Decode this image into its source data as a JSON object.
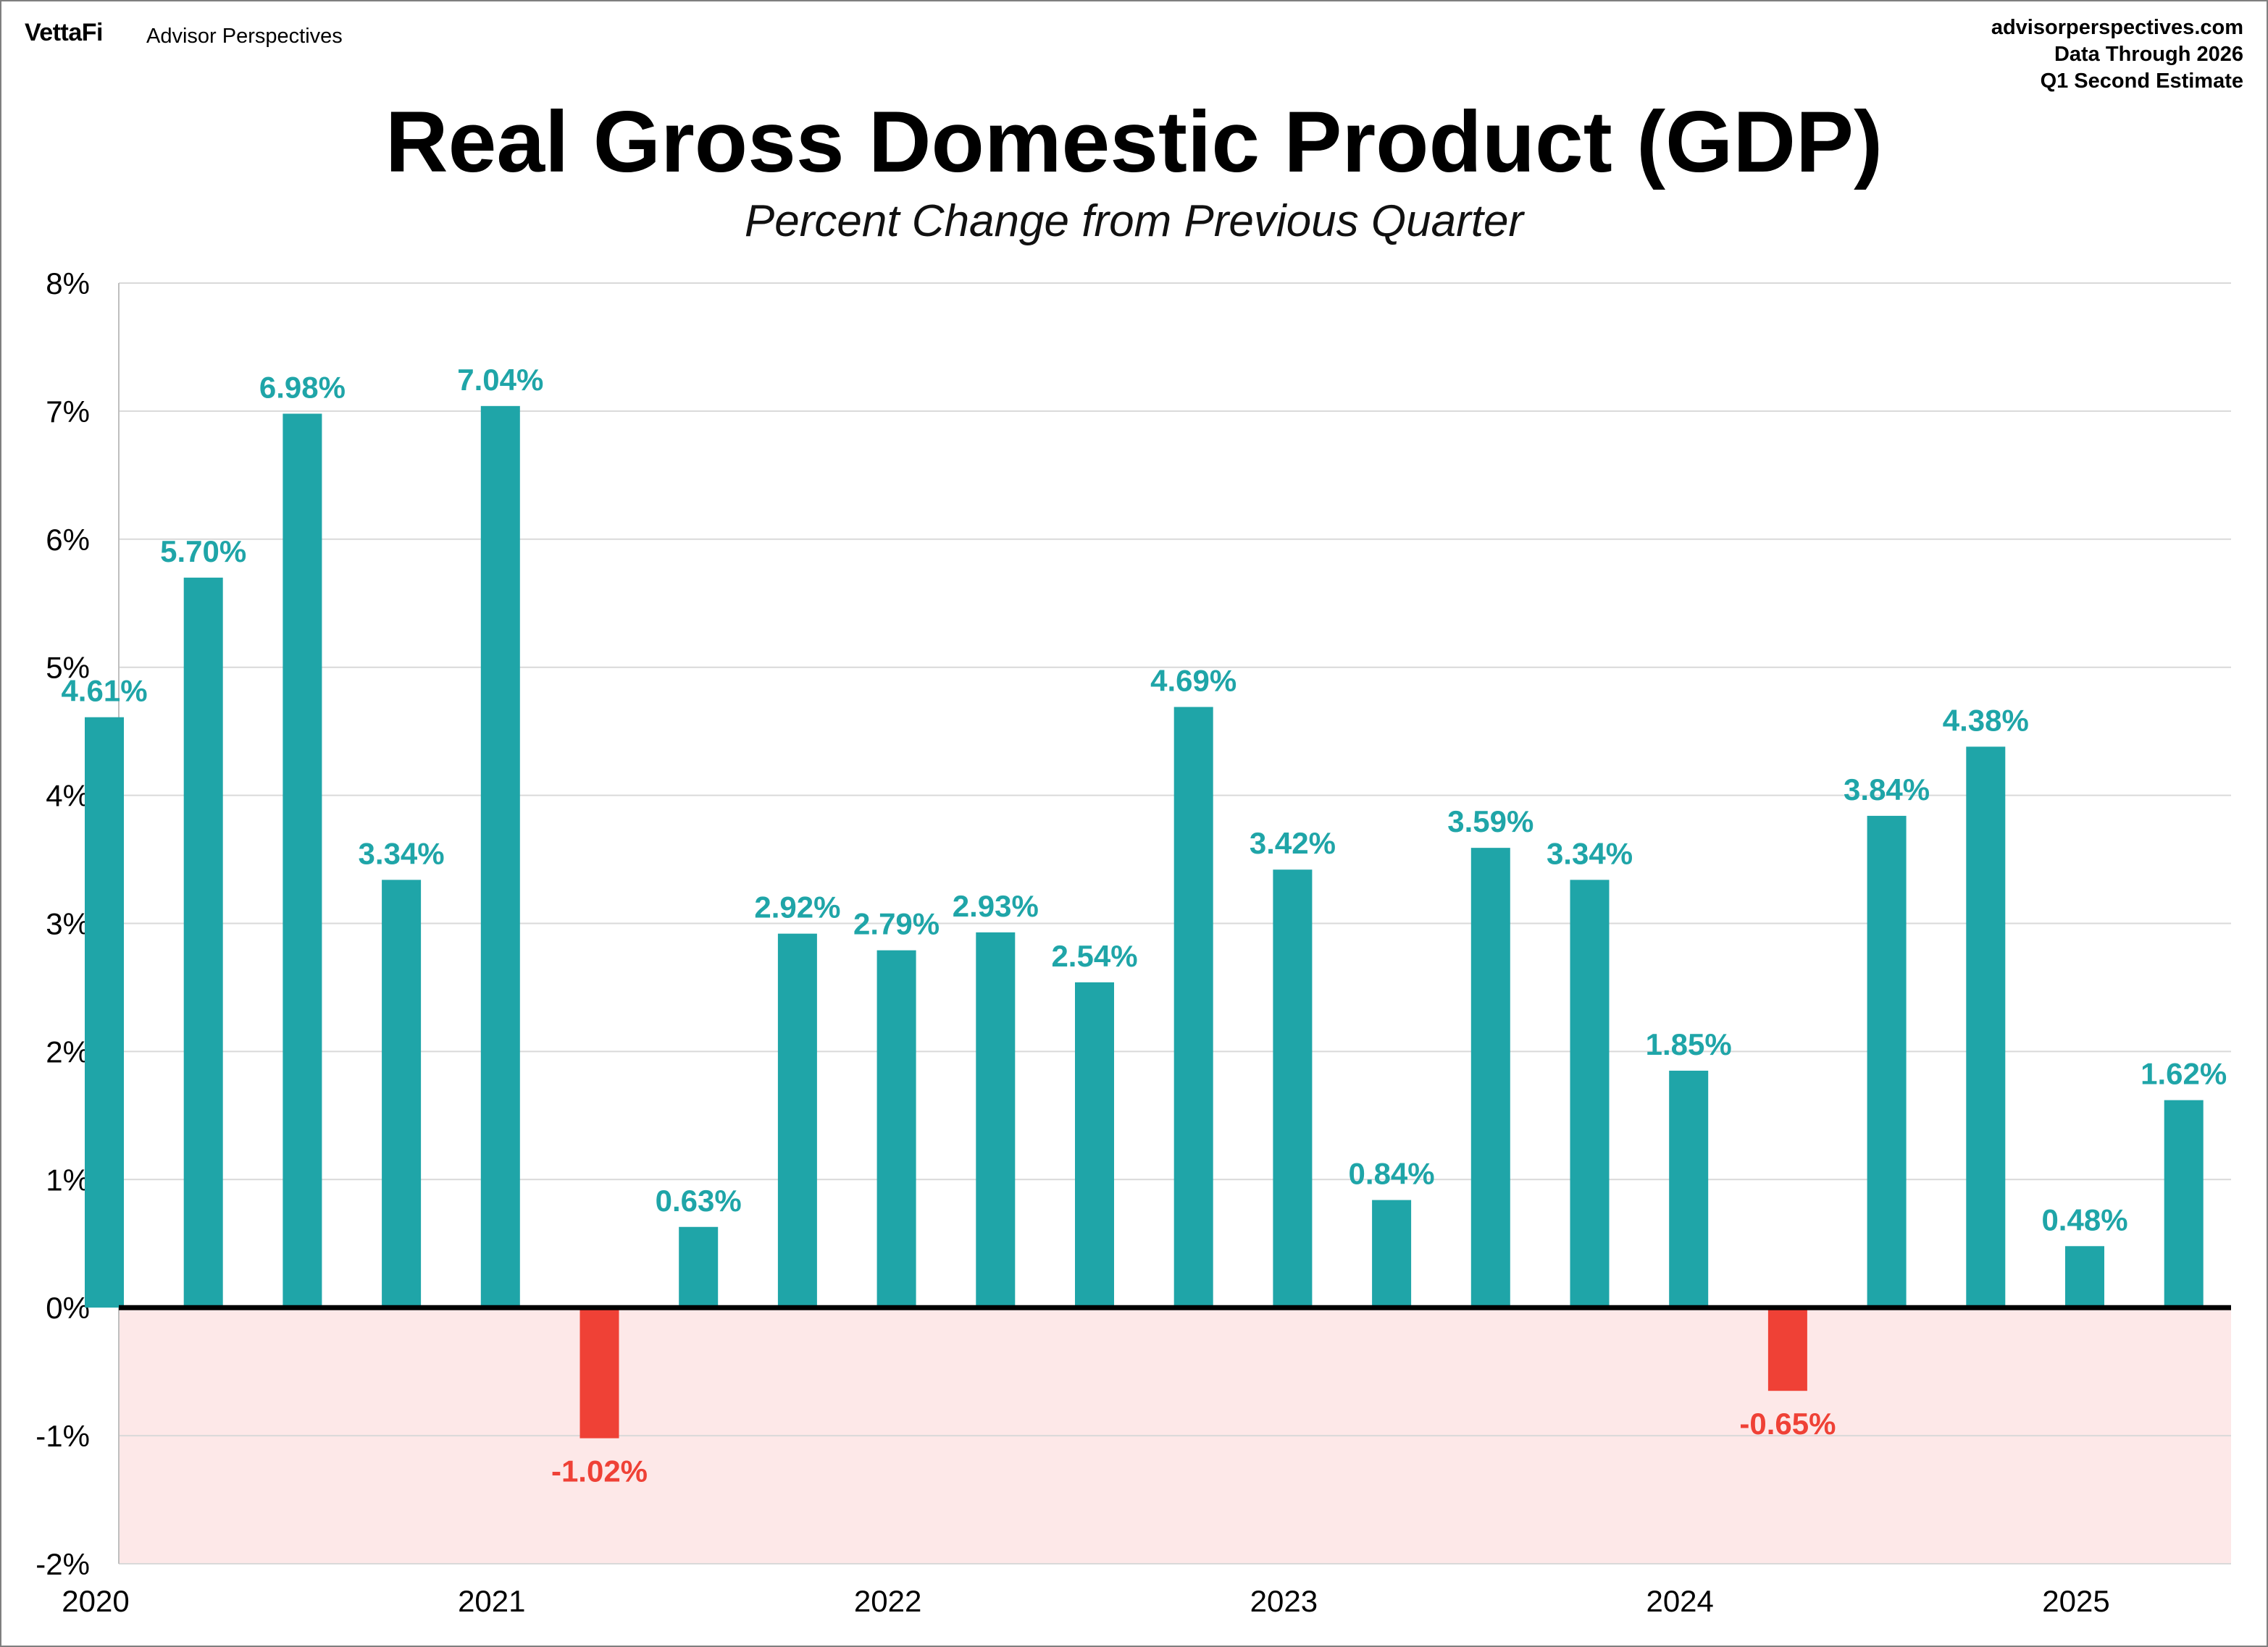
{
  "header": {
    "logo": "VettaFi",
    "logo_sub": "Advisor Perspectives",
    "source_lines": [
      "advisorperspectives.com",
      "Data Through 2026",
      "Q1 Second Estimate"
    ]
  },
  "colors": {
    "positive": "#1fa5a8",
    "negative": "#ef4136",
    "negative_band": "#fde8e8",
    "grid": "#d9d9d9",
    "zero_line": "#000000"
  },
  "chart_data": {
    "type": "bar",
    "title": "Real Gross Domestic Product (GDP)",
    "subtitle": "Percent Change from Previous Quarter",
    "xlabel": "",
    "ylabel": "",
    "ylim": [
      -2,
      8
    ],
    "yticks": [
      -2,
      -1,
      0,
      1,
      2,
      3,
      4,
      5,
      6,
      7,
      8
    ],
    "ytick_labels": [
      "-2%",
      "-1%",
      "0%",
      "1%",
      "2%",
      "3%",
      "4%",
      "5%",
      "6%",
      "7%",
      "8%"
    ],
    "grid": true,
    "x_year_labels": [
      "2020",
      "2021",
      "2022",
      "2023",
      "2024",
      "2025"
    ],
    "values": [
      4.61,
      5.7,
      6.98,
      3.34,
      7.04,
      -1.02,
      0.63,
      2.92,
      2.79,
      2.93,
      2.54,
      4.69,
      3.42,
      0.84,
      3.59,
      3.34,
      1.85,
      -0.65,
      3.84,
      4.38,
      0.48,
      1.62
    ],
    "data_labels": [
      "4.61%",
      "5.70%",
      "6.98%",
      "3.34%",
      "7.04%",
      "-1.02%",
      "0.63%",
      "2.92%",
      "2.79%",
      "2.93%",
      "2.54%",
      "4.69%",
      "3.42%",
      "0.84%",
      "3.59%",
      "3.34%",
      "1.85%",
      "-0.65%",
      "3.84%",
      "4.38%",
      "0.48%",
      "1.62%"
    ]
  }
}
